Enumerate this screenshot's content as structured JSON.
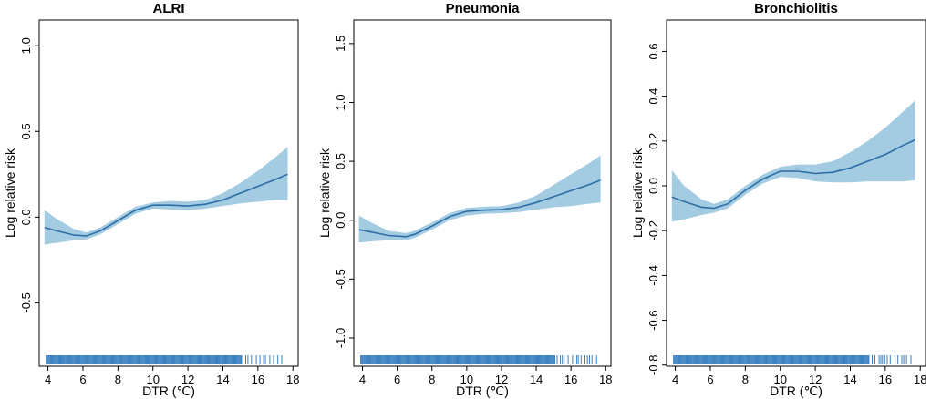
{
  "figure": {
    "accent_band": "#a3cbe2",
    "accent_line": "#2d6ea6",
    "rug_color": "#3a7fc0"
  },
  "chart_data": [
    {
      "type": "line",
      "title": "ALRI",
      "xlabel": "DTR (℃)",
      "ylabel": "Log relative risk",
      "xlim": [
        3.5,
        18.3
      ],
      "ylim": [
        -0.87,
        1.15
      ],
      "x_ticks": [
        "4",
        "6",
        "8",
        "10",
        "12",
        "14",
        "16",
        "18"
      ],
      "y_ticks": [
        "-0.5",
        "0.0",
        "0.5",
        "1.0"
      ],
      "series": [
        {
          "name": "estimate",
          "x": [
            3.8,
            4.5,
            5.5,
            6.2,
            7.0,
            8.0,
            9.0,
            10.0,
            11.0,
            12.0,
            13.0,
            14.0,
            15.0,
            16.0,
            17.0,
            17.7
          ],
          "y": [
            -0.06,
            -0.08,
            -0.105,
            -0.11,
            -0.08,
            -0.02,
            0.04,
            0.07,
            0.07,
            0.065,
            0.075,
            0.1,
            0.14,
            0.18,
            0.22,
            0.25
          ],
          "lower": [
            -0.16,
            -0.15,
            -0.135,
            -0.13,
            -0.1,
            -0.04,
            0.02,
            0.05,
            0.045,
            0.04,
            0.05,
            0.065,
            0.08,
            0.09,
            0.1,
            0.1
          ],
          "upper": [
            0.04,
            -0.01,
            -0.07,
            -0.09,
            -0.06,
            0.0,
            0.06,
            0.085,
            0.095,
            0.09,
            0.1,
            0.14,
            0.2,
            0.27,
            0.35,
            0.41
          ]
        }
      ]
    },
    {
      "type": "line",
      "title": "Pneumonia",
      "xlabel": "DTR (℃)",
      "ylabel": "Log relative risk",
      "xlim": [
        3.5,
        18.3
      ],
      "ylim": [
        -1.24,
        1.7
      ],
      "x_ticks": [
        "4",
        "6",
        "8",
        "10",
        "12",
        "14",
        "16",
        "18"
      ],
      "y_ticks": [
        "-1.0",
        "-0.5",
        "0.0",
        "0.5",
        "1.0",
        "1.5"
      ],
      "series": [
        {
          "name": "estimate",
          "x": [
            3.8,
            4.5,
            5.5,
            6.5,
            7.0,
            8.0,
            9.0,
            10.0,
            11.0,
            12.0,
            13.0,
            14.0,
            15.0,
            16.0,
            17.0,
            17.7
          ],
          "y": [
            -0.08,
            -0.1,
            -0.13,
            -0.14,
            -0.12,
            -0.05,
            0.03,
            0.075,
            0.085,
            0.09,
            0.11,
            0.15,
            0.2,
            0.25,
            0.3,
            0.34
          ],
          "lower": [
            -0.19,
            -0.18,
            -0.17,
            -0.17,
            -0.15,
            -0.08,
            0.0,
            0.04,
            0.055,
            0.06,
            0.07,
            0.09,
            0.11,
            0.12,
            0.14,
            0.15
          ],
          "upper": [
            0.04,
            -0.02,
            -0.09,
            -0.11,
            -0.09,
            -0.02,
            0.06,
            0.105,
            0.115,
            0.12,
            0.15,
            0.21,
            0.3,
            0.39,
            0.48,
            0.55
          ]
        }
      ]
    },
    {
      "type": "line",
      "title": "Bronchiolitis",
      "xlabel": "DTR (℃)",
      "ylabel": "Log relative risk",
      "xlim": [
        3.5,
        18.3
      ],
      "ylim": [
        -0.805,
        0.74
      ],
      "x_ticks": [
        "4",
        "6",
        "8",
        "10",
        "12",
        "14",
        "16",
        "18"
      ],
      "y_ticks": [
        "-0.8",
        "-0.6",
        "-0.4",
        "-0.2",
        "0.0",
        "0.2",
        "0.4",
        "0.6"
      ],
      "series": [
        {
          "name": "estimate",
          "x": [
            3.8,
            4.5,
            5.5,
            6.2,
            7.0,
            8.0,
            9.0,
            10.0,
            11.0,
            12.0,
            13.0,
            14.0,
            15.0,
            16.0,
            17.0,
            17.7
          ],
          "y": [
            -0.05,
            -0.07,
            -0.095,
            -0.1,
            -0.08,
            -0.02,
            0.03,
            0.065,
            0.065,
            0.055,
            0.06,
            0.08,
            0.11,
            0.14,
            0.18,
            0.205
          ],
          "lower": [
            -0.16,
            -0.15,
            -0.13,
            -0.12,
            -0.1,
            -0.04,
            0.01,
            0.04,
            0.035,
            0.02,
            0.015,
            0.015,
            0.02,
            0.02,
            0.02,
            0.025
          ],
          "upper": [
            0.07,
            0.0,
            -0.06,
            -0.08,
            -0.06,
            0.0,
            0.05,
            0.085,
            0.095,
            0.095,
            0.11,
            0.15,
            0.2,
            0.26,
            0.33,
            0.38
          ]
        }
      ]
    }
  ]
}
